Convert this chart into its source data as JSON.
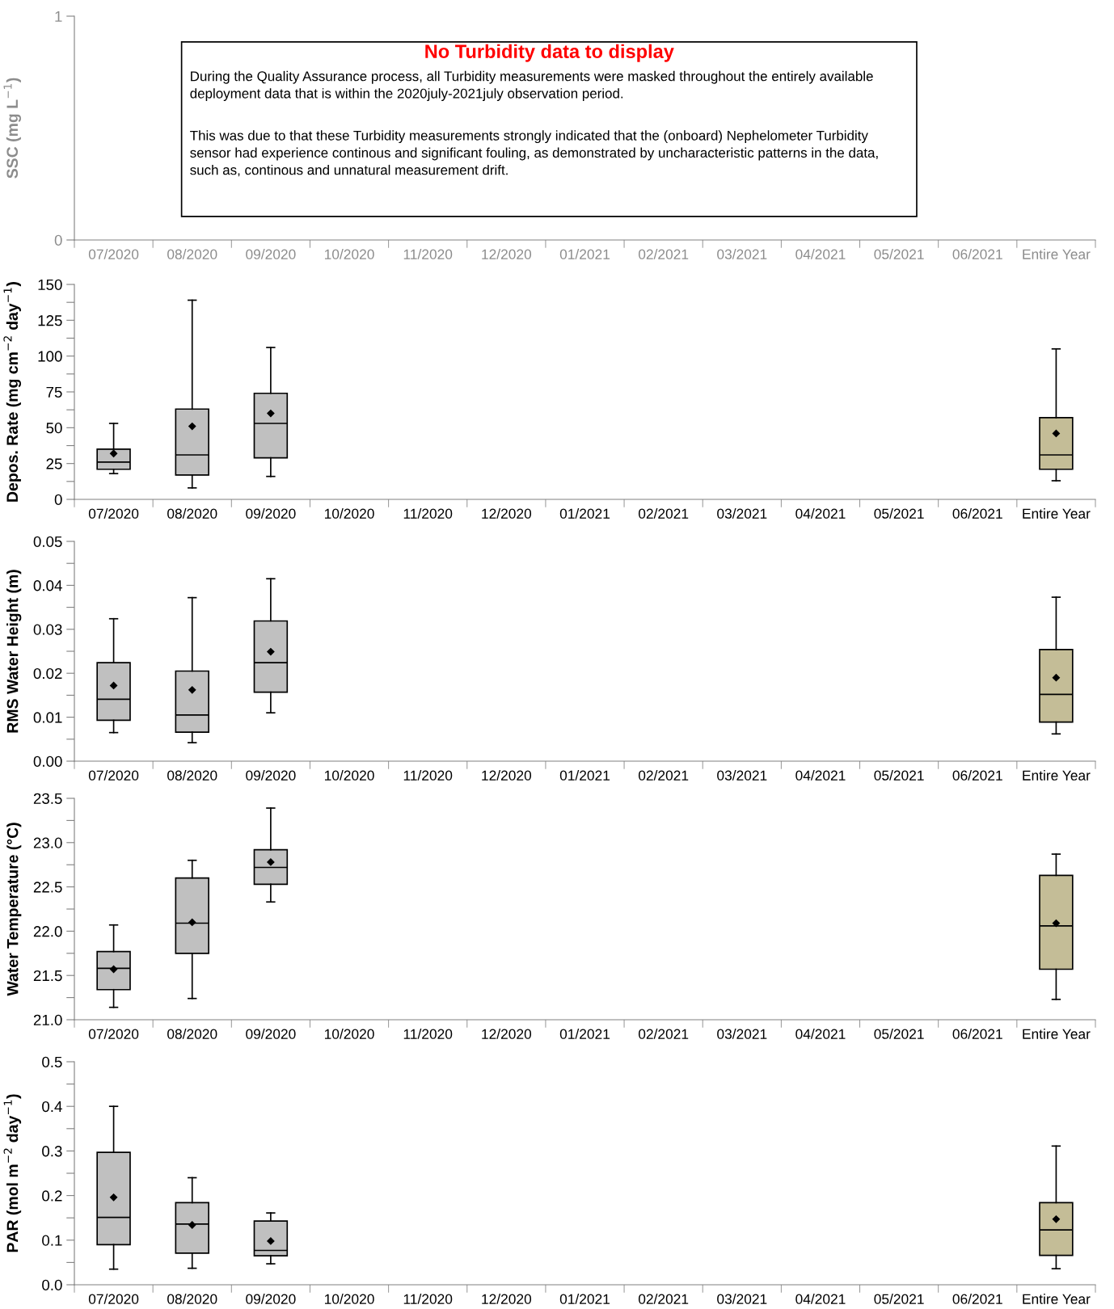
{
  "chart_data": [
    {
      "type": "box",
      "ylabel": "SSC (mg L$^{−1}$)",
      "categories": [
        "07/2020",
        "08/2020",
        "09/2020",
        "10/2020",
        "11/2020",
        "12/2020",
        "01/2021",
        "02/2021",
        "03/2021",
        "04/2021",
        "05/2021",
        "06/2021",
        "Entire Year"
      ],
      "boxes": [
        null,
        null,
        null,
        null,
        null,
        null,
        null,
        null,
        null,
        null,
        null,
        null,
        null
      ],
      "ylim": [
        0,
        1
      ],
      "yticks": [
        0,
        1
      ],
      "annotations": [
        "No Turbidity data to display",
        "During the Quality Assurance process, all Turbidity measurements were masked throughout the entirely available deployment data that is within the 2020july-2021july observation period.",
        "This was due to that these Turbidity measurements strongly indicated that the (onboard) Nephelometer Turbidity sensor had experience continous and significant fouling, as demonstrated by uncharacteristic patterns in the data, such as, continous and unnatural measurement drift."
      ]
    },
    {
      "type": "box",
      "ylabel": "Depos. Rate (mg cm$^{−2}$ day$^{−1}$)",
      "categories": [
        "07/2020",
        "08/2020",
        "09/2020",
        "10/2020",
        "11/2020",
        "12/2020",
        "01/2021",
        "02/2021",
        "03/2021",
        "04/2021",
        "05/2021",
        "06/2021",
        "Entire Year"
      ],
      "boxes": [
        {
          "low": 18,
          "q1": 21,
          "median": 26,
          "q3": 35,
          "high": 53,
          "mean": 32
        },
        {
          "low": 8,
          "q1": 17,
          "median": 31,
          "q3": 63,
          "high": 139,
          "mean": 51
        },
        {
          "low": 16,
          "q1": 29,
          "median": 53,
          "q3": 74,
          "high": 106,
          "mean": 60
        },
        null,
        null,
        null,
        null,
        null,
        null,
        null,
        null,
        null,
        {
          "low": 13,
          "q1": 21,
          "median": 31,
          "q3": 57,
          "high": 105,
          "mean": 46
        }
      ],
      "colors": [
        "#c0c0c0",
        "#c0c0c0",
        "#c0c0c0",
        null,
        null,
        null,
        null,
        null,
        null,
        null,
        null,
        null,
        "#c4bd97"
      ],
      "ylim": [
        0,
        150
      ],
      "yticks": [
        0,
        {
          "value": 12.5,
          "label": null
        },
        25,
        {
          "value": 37.5,
          "label": null
        },
        50,
        {
          "value": 62.5,
          "label": null
        },
        75,
        {
          "value": 87.5,
          "label": null
        },
        100,
        {
          "value": 112.5,
          "label": null
        },
        125,
        {
          "value": 137.5,
          "label": null
        },
        150
      ]
    },
    {
      "type": "box",
      "ylabel": "RMS Water Height (m)",
      "categories": [
        "07/2020",
        "08/2020",
        "09/2020",
        "10/2020",
        "11/2020",
        "12/2020",
        "01/2021",
        "02/2021",
        "03/2021",
        "04/2021",
        "05/2021",
        "06/2021",
        "Entire Year"
      ],
      "boxes": [
        {
          "low": 0.0065,
          "q1": 0.0093,
          "median": 0.0141,
          "q3": 0.0224,
          "high": 0.0324,
          "mean": 0.0172
        },
        {
          "low": 0.0042,
          "q1": 0.0066,
          "median": 0.0105,
          "q3": 0.0205,
          "high": 0.0372,
          "mean": 0.0162
        },
        {
          "low": 0.011,
          "q1": 0.0157,
          "median": 0.0224,
          "q3": 0.0319,
          "high": 0.0415,
          "mean": 0.0249
        },
        null,
        null,
        null,
        null,
        null,
        null,
        null,
        null,
        null,
        {
          "low": 0.0062,
          "q1": 0.0089,
          "median": 0.0152,
          "q3": 0.0254,
          "high": 0.0373,
          "mean": 0.019
        }
      ],
      "colors": [
        "#c0c0c0",
        "#c0c0c0",
        "#c0c0c0",
        null,
        null,
        null,
        null,
        null,
        null,
        null,
        null,
        null,
        "#c4bd97"
      ],
      "ylim": [
        0,
        0.05
      ],
      "yticks": [
        {
          "value": 0,
          "label": "0.00"
        },
        {
          "value": 0.005,
          "label": null
        },
        {
          "value": 0.01,
          "label": "0.01"
        },
        {
          "value": 0.015,
          "label": null
        },
        {
          "value": 0.02,
          "label": "0.02"
        },
        {
          "value": 0.025,
          "label": null
        },
        {
          "value": 0.03,
          "label": "0.03"
        },
        {
          "value": 0.035,
          "label": null
        },
        {
          "value": 0.04,
          "label": "0.04"
        },
        {
          "value": 0.045,
          "label": null
        },
        {
          "value": 0.05,
          "label": "0.05"
        }
      ]
    },
    {
      "type": "box",
      "ylabel": "Water Temperature (°C)",
      "categories": [
        "07/2020",
        "08/2020",
        "09/2020",
        "10/2020",
        "11/2020",
        "12/2020",
        "01/2021",
        "02/2021",
        "03/2021",
        "04/2021",
        "05/2021",
        "06/2021",
        "Entire Year"
      ],
      "boxes": [
        {
          "low": 21.14,
          "q1": 21.34,
          "median": 21.58,
          "q3": 21.77,
          "high": 22.07,
          "mean": 21.57
        },
        {
          "low": 21.24,
          "q1": 21.75,
          "median": 22.09,
          "q3": 22.6,
          "high": 22.8,
          "mean": 22.1
        },
        {
          "low": 22.33,
          "q1": 22.53,
          "median": 22.72,
          "q3": 22.92,
          "high": 23.39,
          "mean": 22.78
        },
        null,
        null,
        null,
        null,
        null,
        null,
        null,
        null,
        null,
        {
          "low": 21.23,
          "q1": 21.57,
          "median": 22.06,
          "q3": 22.63,
          "high": 22.87,
          "mean": 22.09
        }
      ],
      "colors": [
        "#c0c0c0",
        "#c0c0c0",
        "#c0c0c0",
        null,
        null,
        null,
        null,
        null,
        null,
        null,
        null,
        null,
        "#c4bd97"
      ],
      "ylim": [
        21,
        23.5
      ],
      "yticks": [
        {
          "value": 21,
          "label": "21.0"
        },
        {
          "value": 21.25,
          "label": null
        },
        {
          "value": 21.5,
          "label": "21.5"
        },
        {
          "value": 21.75,
          "label": null
        },
        {
          "value": 22,
          "label": "22.0"
        },
        {
          "value": 22.25,
          "label": null
        },
        {
          "value": 22.5,
          "label": "22.5"
        },
        {
          "value": 22.75,
          "label": null
        },
        {
          "value": 23,
          "label": "23.0"
        },
        {
          "value": 23.25,
          "label": null
        },
        {
          "value": 23.5,
          "label": "23.5"
        }
      ]
    },
    {
      "type": "box",
      "ylabel": "PAR (mol m$^{−2}$ day$^{−1}$)",
      "categories": [
        "07/2020",
        "08/2020",
        "09/2020",
        "10/2020",
        "11/2020",
        "12/2020",
        "01/2021",
        "02/2021",
        "03/2021",
        "04/2021",
        "05/2021",
        "06/2021",
        "Entire Year"
      ],
      "boxes": [
        {
          "low": 0.035,
          "q1": 0.09,
          "median": 0.151,
          "q3": 0.297,
          "high": 0.4,
          "mean": 0.196
        },
        {
          "low": 0.037,
          "q1": 0.071,
          "median": 0.136,
          "q3": 0.184,
          "high": 0.24,
          "mean": 0.134
        },
        {
          "low": 0.047,
          "q1": 0.065,
          "median": 0.077,
          "q3": 0.143,
          "high": 0.161,
          "mean": 0.098
        },
        null,
        null,
        null,
        null,
        null,
        null,
        null,
        null,
        null,
        {
          "low": 0.036,
          "q1": 0.066,
          "median": 0.123,
          "q3": 0.184,
          "high": 0.311,
          "mean": 0.147
        }
      ],
      "colors": [
        "#c0c0c0",
        "#c0c0c0",
        "#c0c0c0",
        null,
        null,
        null,
        null,
        null,
        null,
        null,
        null,
        null,
        "#c4bd97"
      ],
      "ylim": [
        0,
        0.5
      ],
      "yticks": [
        {
          "value": 0,
          "label": "0.0"
        },
        {
          "value": 0.05,
          "label": null
        },
        {
          "value": 0.1,
          "label": "0.1"
        },
        {
          "value": 0.15,
          "label": null
        },
        {
          "value": 0.2,
          "label": "0.2"
        },
        {
          "value": 0.25,
          "label": null
        },
        {
          "value": 0.3,
          "label": "0.3"
        },
        {
          "value": 0.35,
          "label": null
        },
        {
          "value": 0.4,
          "label": "0.4"
        },
        {
          "value": 0.45,
          "label": null
        },
        {
          "value": 0.5,
          "label": "0.5"
        }
      ]
    }
  ]
}
